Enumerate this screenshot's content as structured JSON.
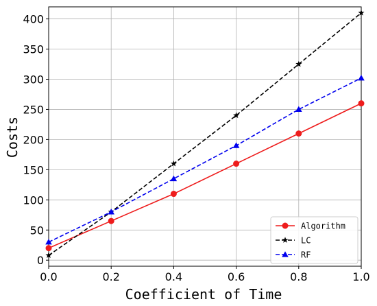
{
  "chart_data": {
    "type": "line",
    "title": "",
    "xlabel": "Coefficient of Time",
    "ylabel": "Costs",
    "xlim": [
      0.0,
      1.0
    ],
    "ylim": [
      -10,
      420
    ],
    "xticks": [
      0.0,
      0.2,
      0.4,
      0.6,
      0.8,
      1.0
    ],
    "xtick_labels": [
      "0.0",
      "0.2",
      "0.4",
      "0.6",
      "0.8",
      "1.0"
    ],
    "yticks": [
      0,
      50,
      100,
      150,
      200,
      250,
      300,
      350,
      400
    ],
    "ytick_labels": [
      "0",
      "50",
      "100",
      "150",
      "200",
      "250",
      "300",
      "350",
      "400"
    ],
    "grid": true,
    "legend_position": "lower-right",
    "x": [
      0.0,
      0.2,
      0.4,
      0.6,
      0.8,
      1.0
    ],
    "series": [
      {
        "name": "Algorithm",
        "values": [
          20,
          65,
          110,
          160,
          210,
          260
        ],
        "color": "#ee1c1c",
        "marker": "circle",
        "line_style": "solid"
      },
      {
        "name": "LC",
        "values": [
          8,
          80,
          160,
          240,
          325,
          410
        ],
        "color": "#000000",
        "marker": "star",
        "line_style": "dashed"
      },
      {
        "name": "RF",
        "values": [
          30,
          80,
          135,
          190,
          250,
          302
        ],
        "color": "#0000ee",
        "marker": "triangle",
        "line_style": "dashed"
      }
    ]
  }
}
